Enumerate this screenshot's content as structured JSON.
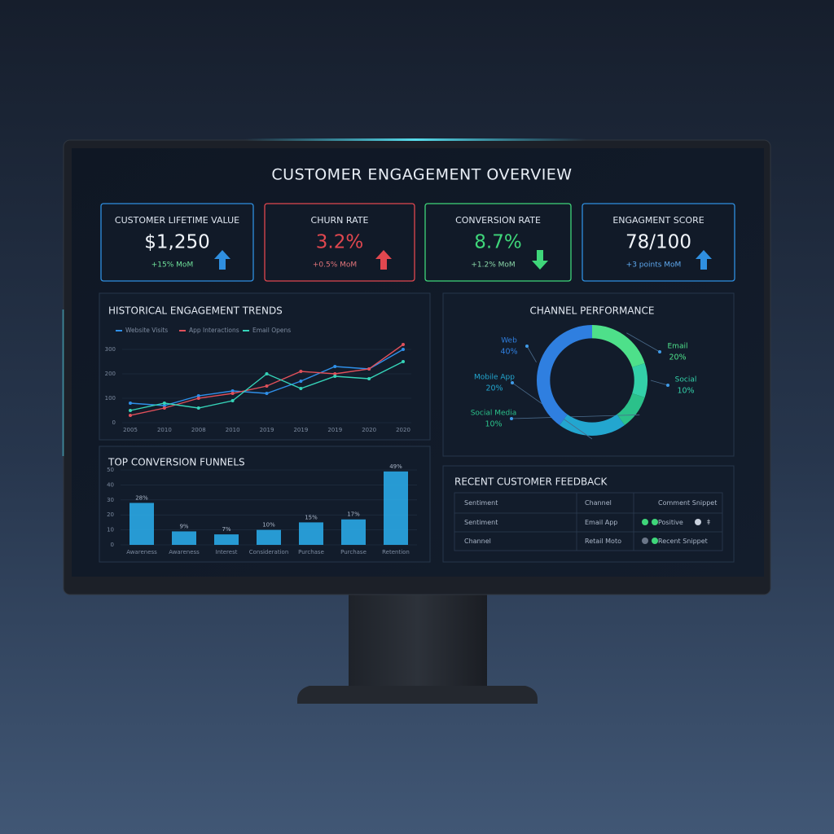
{
  "title": "CUSTOMER ENGAGEMENT OVERVIEW",
  "kpis": [
    {
      "label": "CUSTOMER LIFETIME VALUE",
      "value": "$1,250",
      "change": "+15% MoM",
      "color": "#2f8fe0"
    },
    {
      "label": "CHURN RATE",
      "value": "3.2%",
      "change": "+0.5% MoM",
      "color": "#e0474f"
    },
    {
      "label": "CONVERSION RATE",
      "value": "8.7%",
      "change": "+1.2% MoM",
      "color": "#3fd67a"
    },
    {
      "label": "ENGAGMENT SCORE",
      "value": "78/100",
      "change": "+3 points MoM",
      "color": "#2f8fe0"
    }
  ],
  "chart_data": [
    {
      "type": "line",
      "title": "HISTORICAL ENGAGEMENT TRENDS",
      "categories": [
        "2005",
        "2010",
        "2008",
        "2010",
        "2019",
        "2019",
        "2019",
        "2020",
        "2020"
      ],
      "series": [
        {
          "name": "Website Visits",
          "color": "#2f8fe8",
          "values": [
            80,
            70,
            110,
            130,
            120,
            170,
            230,
            220,
            300
          ]
        },
        {
          "name": "App Interactions",
          "color": "#e0505a",
          "values": [
            30,
            60,
            100,
            120,
            150,
            210,
            200,
            220,
            320
          ]
        },
        {
          "name": "Email Opens",
          "color": "#35d3b8",
          "values": [
            50,
            80,
            60,
            90,
            200,
            140,
            190,
            180,
            250
          ]
        }
      ],
      "ylim": [
        0,
        330
      ],
      "yticks": [
        0,
        100,
        200,
        300
      ],
      "grid": true
    },
    {
      "type": "bar",
      "title": "TOP CONVERSION FUNNELS",
      "categories": [
        "Awareness",
        "Awareness",
        "Interest",
        "Consideration",
        "Purchase",
        "Purchase",
        "Retention"
      ],
      "values": [
        28,
        9,
        7,
        10,
        15,
        17,
        49
      ],
      "value_labels": [
        "28%",
        "9%",
        "7%",
        "10%",
        "15%",
        "17%",
        "49%"
      ],
      "color": "#2aa8e6",
      "ylim": [
        0,
        50
      ],
      "yticks": [
        0,
        10,
        20,
        30,
        40,
        50
      ],
      "grid": true
    },
    {
      "type": "pie",
      "title": "CHANNEL PERFORMANCE",
      "donut": true,
      "categories": [
        "Email",
        "Social",
        "Social Media",
        "Mobile App",
        "Web"
      ],
      "values": [
        20,
        10,
        10,
        20,
        40
      ],
      "value_labels": [
        "20%",
        "10%",
        "10%",
        "20%",
        "40%"
      ],
      "colors": [
        "#4ee08a",
        "#33d0a8",
        "#2bc18a",
        "#23a6cf",
        "#2f7fe0"
      ]
    }
  ],
  "feedback": {
    "title": "RECENT CUSTOMER FEEDBACK",
    "header": [
      "Sentiment",
      "Channel",
      "Comment Snippet"
    ],
    "rows": [
      [
        "Sentiment",
        "Email App",
        "Positive"
      ],
      [
        "Channel",
        "Retail Moto",
        "Recent Snippet"
      ]
    ]
  }
}
